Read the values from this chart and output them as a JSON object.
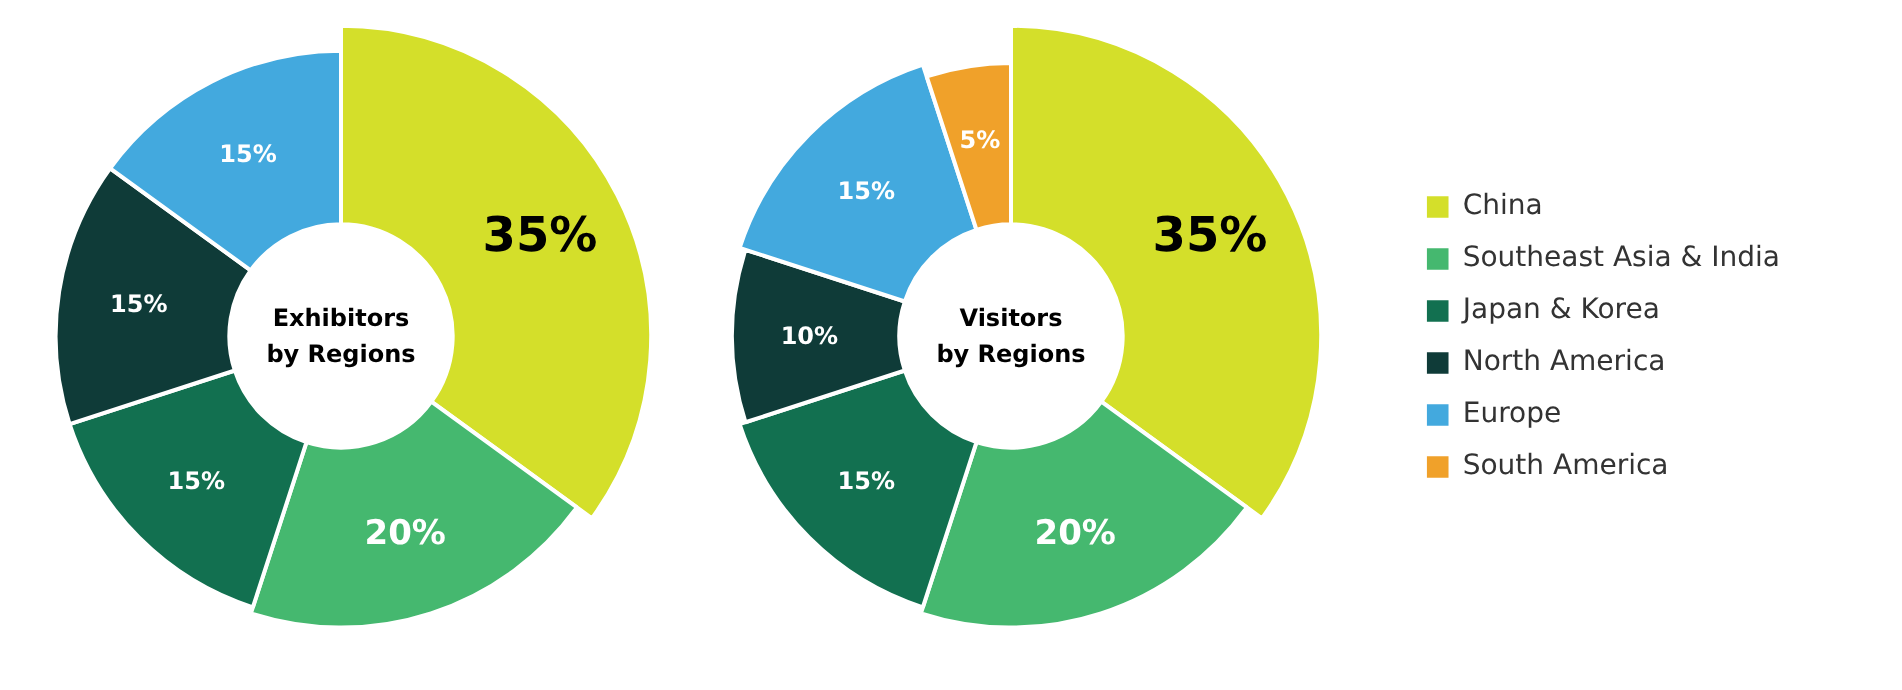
{
  "chart_data": [
    {
      "type": "donut",
      "title": "Exhibitors\nby Regions",
      "categories": [
        null,
        null,
        null,
        null,
        null
      ],
      "values": [
        35,
        20,
        15,
        15,
        15
      ],
      "value_labels": [
        "35%",
        "20%",
        "15%",
        "15%",
        "15%"
      ],
      "colors": [
        "#d4df2a",
        "#45b86f",
        "#127050",
        "#0f3b38",
        "#43a9de"
      ],
      "legend": false
    },
    {
      "type": "donut",
      "title": "Visitors\nby Regions",
      "categories": [
        "China",
        "Southeast Asia & India",
        "Japan & Korea",
        "North America",
        "Europe",
        "South America"
      ],
      "values": [
        35,
        20,
        15,
        10,
        15,
        5
      ],
      "value_labels": [
        "35%",
        "20%",
        "15%",
        "10%",
        "15%",
        "5%"
      ],
      "colors": [
        "#d4df2a",
        "#45b86f",
        "#127050",
        "#0f3b38",
        "#43a9de",
        "#f0a12a"
      ],
      "legend": "right"
    }
  ]
}
